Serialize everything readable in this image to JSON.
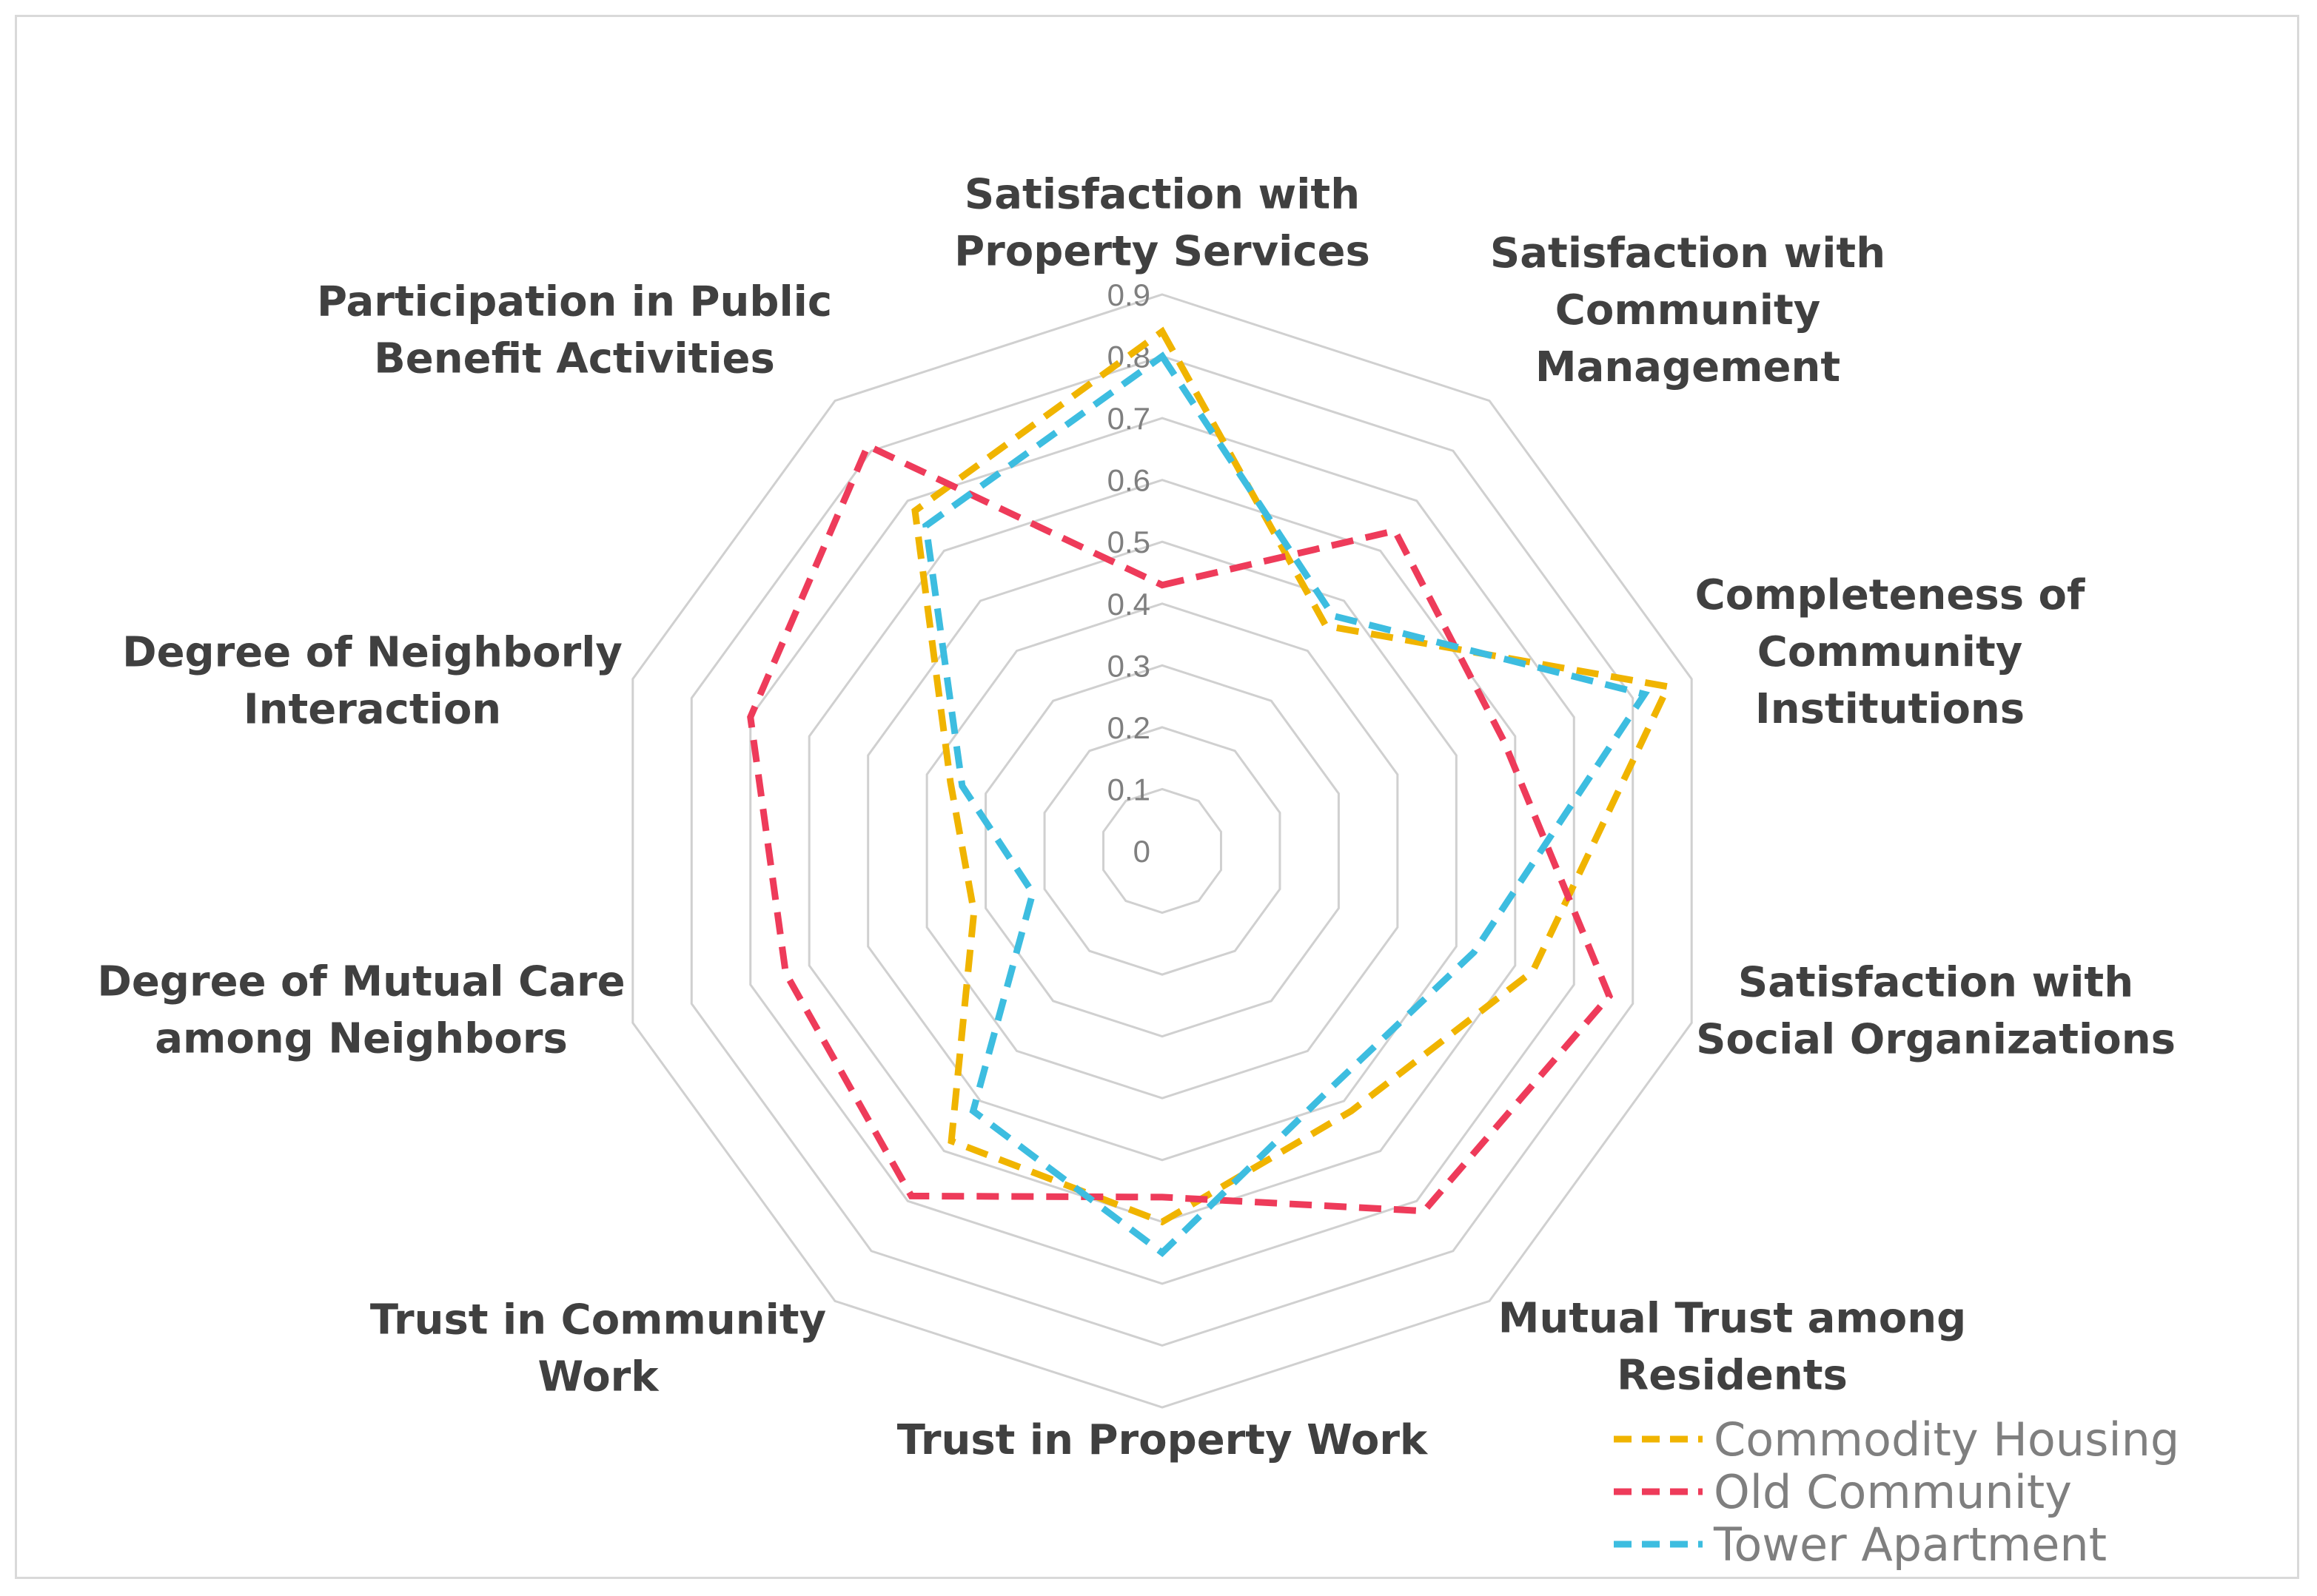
{
  "chart_data": {
    "type": "radar",
    "title": "",
    "categories": [
      "Satisfaction with\nProperty Services",
      "Satisfaction with\nCommunity\nManagement",
      "Completeness of\nCommunity\nInstitutions",
      "Satisfaction with\nSocial Organizations",
      "Mutual Trust among\nResidents",
      "Trust in Property Work",
      "Trust in Community\nWork",
      "Degree of Mutual Care\namong Neighbors",
      "Degree of Neighborly\nInteraction",
      "Participation in Public\nBenefit Activities"
    ],
    "axis": {
      "min": 0,
      "max": 0.9,
      "step": 0.1,
      "tick_labels": [
        "0",
        "0.1",
        "0.2",
        "0.3",
        "0.4",
        "0.5",
        "0.6",
        "0.7",
        "0.8",
        "0.9"
      ]
    },
    "grid": true,
    "legend_position": "bottom-right",
    "series": [
      {
        "name": "Commodity Housing",
        "color": "#F0B400",
        "values": [
          0.84,
          0.45,
          0.86,
          0.63,
          0.52,
          0.6,
          0.58,
          0.32,
          0.36,
          0.68
        ]
      },
      {
        "name": "Old Community",
        "color": "#EE3B5A",
        "values": [
          0.43,
          0.64,
          0.58,
          0.76,
          0.72,
          0.56,
          0.69,
          0.64,
          0.7,
          0.81
        ]
      },
      {
        "name": "Tower Apartment",
        "color": "#3DBDE0",
        "values": [
          0.8,
          0.47,
          0.82,
          0.53,
          0.47,
          0.65,
          0.52,
          0.22,
          0.34,
          0.65
        ]
      }
    ]
  }
}
